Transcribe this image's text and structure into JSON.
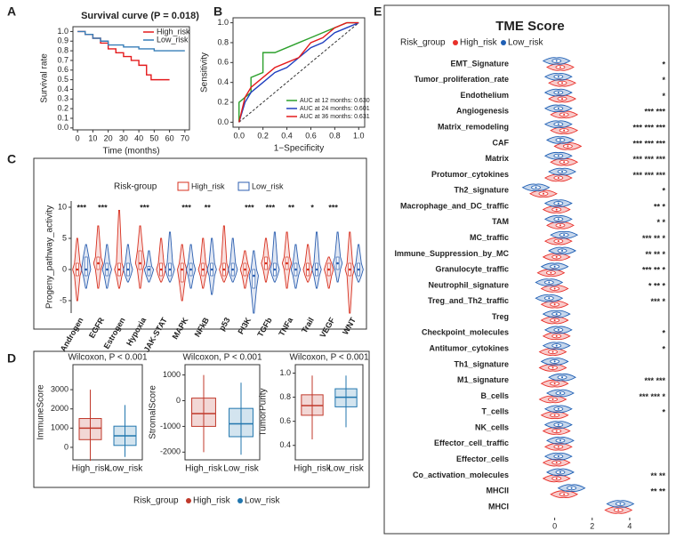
{
  "chart_data": [
    {
      "panel": "A",
      "type": "line",
      "step": true,
      "title": "Survival curve (P = 0.018)",
      "xlabel": "Time (months)",
      "ylabel": "Survival rate",
      "xlim": [
        -3,
        73
      ],
      "xticks": [
        0,
        10,
        20,
        30,
        40,
        50,
        60,
        70
      ],
      "ylim": [
        -0.02,
        1.05
      ],
      "yticks": [
        {
          "value": 0,
          "label": "0.0"
        },
        0.1,
        0.2,
        0.3,
        0.4,
        0.5,
        0.6,
        0.7,
        0.8,
        0.9,
        {
          "value": 1,
          "label": "1.0"
        }
      ],
      "legend": "topright",
      "series": [
        {
          "name": "High_risk",
          "color": "#e41a1c",
          "x": [
            0,
            5,
            10,
            15,
            20,
            25,
            30,
            35,
            40,
            45,
            48,
            50,
            60
          ],
          "values": [
            1,
            0.97,
            0.93,
            0.88,
            0.82,
            0.78,
            0.74,
            0.7,
            0.65,
            0.55,
            0.5,
            0.5,
            0.5
          ]
        },
        {
          "name": "Low_risk",
          "color": "#377eb8",
          "x": [
            0,
            5,
            10,
            15,
            20,
            30,
            40,
            50,
            60,
            70
          ],
          "values": [
            1,
            0.97,
            0.93,
            0.9,
            0.86,
            0.84,
            0.82,
            0.8,
            0.8,
            0.8
          ]
        }
      ]
    },
    {
      "panel": "B",
      "type": "line",
      "step": false,
      "diagonal": true,
      "xlabel": "1−Specificity",
      "ylabel": "Sensitivity",
      "xlim": [
        -0.05,
        1.05
      ],
      "xticks": [
        {
          "value": 0,
          "label": "0.0"
        },
        0.2,
        0.4,
        0.6,
        0.8,
        {
          "value": 1,
          "label": "1.0"
        }
      ],
      "ylim": [
        -0.05,
        1.05
      ],
      "yticks": [
        {
          "value": 0,
          "label": "0.0"
        },
        0.2,
        0.4,
        0.6,
        0.8,
        {
          "value": 1,
          "label": "1.0"
        }
      ],
      "legend": "bottomright",
      "series": [
        {
          "name": "AUC at 12 months: 0.630",
          "color": "#2ca02c",
          "x": [
            0,
            0,
            0.1,
            0.1,
            0.2,
            0.2,
            0.3,
            0.4,
            0.5,
            0.6,
            0.7,
            0.8,
            0.9,
            1
          ],
          "values": [
            0,
            0.2,
            0.3,
            0.45,
            0.5,
            0.7,
            0.7,
            0.75,
            0.8,
            0.85,
            0.9,
            0.95,
            1,
            1
          ]
        },
        {
          "name": "AUC at 24 months: 0.601",
          "color": "#1f3fbf",
          "x": [
            0,
            0.05,
            0.1,
            0.2,
            0.3,
            0.4,
            0.5,
            0.6,
            0.7,
            0.8,
            0.9,
            1
          ],
          "values": [
            0,
            0.2,
            0.3,
            0.4,
            0.5,
            0.55,
            0.65,
            0.75,
            0.8,
            0.9,
            0.95,
            1
          ]
        },
        {
          "name": "AUC at 36 months: 0.631",
          "color": "#e41a1c",
          "x": [
            0,
            0.05,
            0.1,
            0.2,
            0.3,
            0.4,
            0.5,
            0.6,
            0.7,
            0.8,
            0.9,
            1
          ],
          "values": [
            0,
            0.25,
            0.35,
            0.45,
            0.55,
            0.6,
            0.65,
            0.8,
            0.85,
            0.95,
            1,
            1
          ]
        }
      ]
    },
    {
      "panel": "C",
      "type": "violin",
      "orientation": "vertical",
      "legend_title": "Risk-group",
      "ylabel": "Progeny_pathway_activity",
      "ylim": [
        -7,
        11
      ],
      "yticks": [
        -5,
        0,
        5,
        10
      ],
      "categories": [
        "Androgen",
        "EGFR",
        "Estrogen",
        "Hypoxia",
        "JAK-STAT",
        "MAPK",
        "NFkB",
        "p53",
        "PI3K",
        "TGFb",
        "TNFa",
        "Trail",
        "VEGF",
        "WNT"
      ],
      "annotations": [
        "***",
        "***",
        null,
        "***",
        null,
        "***",
        "**",
        null,
        "***",
        "***",
        "**",
        "*",
        "***",
        null
      ],
      "series": [
        {
          "name": "High_risk",
          "color": "#d7301f",
          "values": [
            [
              -5,
              -1,
              0,
              1,
              5
            ],
            [
              -3,
              0,
              1,
              2,
              7
            ],
            [
              -3,
              -1,
              0,
              1,
              9.5
            ],
            [
              -3,
              0,
              1,
              3,
              7
            ],
            [
              -2,
              -1,
              0,
              1,
              5
            ],
            [
              -5,
              -2,
              0,
              1,
              4
            ],
            [
              -3,
              -1,
              0,
              1,
              5
            ],
            [
              -2,
              -1,
              0,
              1,
              7
            ],
            [
              -3,
              -1,
              0,
              1,
              3
            ],
            [
              -2,
              0,
              1,
              2,
              5
            ],
            [
              -3,
              0,
              1,
              2,
              6
            ],
            [
              -2,
              -1,
              0,
              1,
              4
            ],
            [
              -3,
              -1,
              0,
              1,
              2
            ],
            [
              -7,
              -1,
              0,
              1,
              6
            ]
          ]
        },
        {
          "name": "Low_risk",
          "color": "#2c5fb0",
          "values": [
            [
              -3,
              -1,
              0,
              2,
              4
            ],
            [
              -3,
              -1,
              0,
              1,
              4
            ],
            [
              -2,
              -1,
              0,
              1,
              4
            ],
            [
              -2,
              -1,
              0,
              0.5,
              3
            ],
            [
              -2,
              -1,
              0,
              1,
              6
            ],
            [
              -3,
              -1,
              0,
              1,
              4
            ],
            [
              -4,
              -1,
              0,
              1,
              5
            ],
            [
              -2,
              -1,
              0,
              1,
              5
            ],
            [
              -7,
              -3,
              -1,
              0,
              3
            ],
            [
              -2,
              -1,
              0,
              1,
              6
            ],
            [
              -3,
              -1,
              0,
              1,
              4
            ],
            [
              -3,
              -1,
              0,
              1,
              6
            ],
            [
              -2,
              0,
              1,
              2,
              6
            ],
            [
              -2,
              -1,
              0,
              1,
              4
            ]
          ]
        }
      ]
    },
    {
      "panel": "D",
      "type": "box",
      "legend_title": "Risk_group",
      "groups": [
        {
          "name": "High_risk",
          "color": "#c0392b"
        },
        {
          "name": "Low_risk",
          "color": "#2176ae"
        }
      ],
      "subplots": [
        {
          "title": "Wilcoxon, P < 0.001",
          "ylabel": "ImmuneScore",
          "categories": [
            "High_risk",
            "Low_risk"
          ],
          "ylim": [
            -650,
            4300
          ],
          "yticks": [
            0,
            1000,
            2000,
            3000
          ],
          "values": [
            [
              -700,
              400,
              1000,
              1500,
              3000
            ],
            [
              -500,
              100,
              600,
              1100,
              2200
            ]
          ]
        },
        {
          "title": "Wilcoxon, P < 0.001",
          "ylabel": "StromalScore",
          "categories": [
            "High_risk",
            "Low_risk"
          ],
          "ylim": [
            -2300,
            1400
          ],
          "yticks": [
            -2000,
            -1000,
            0,
            1000
          ],
          "values": [
            [
              -2000,
              -1000,
              -500,
              100,
              1000
            ],
            [
              -2100,
              -1400,
              -900,
              -300,
              700
            ]
          ]
        },
        {
          "title": "Wilcoxon, P < 0.001",
          "ylabel": "TumorPurity",
          "categories": [
            "High_risk",
            "Low_risk"
          ],
          "ylim": [
            0.28,
            1.07
          ],
          "yticks": [
            0.4,
            0.6,
            0.8,
            {
              "value": 1,
              "label": "1.0"
            }
          ],
          "values": [
            [
              0.45,
              0.65,
              0.73,
              0.82,
              0.98
            ],
            [
              0.55,
              0.72,
              0.8,
              0.87,
              0.98
            ]
          ]
        }
      ]
    },
    {
      "panel": "E",
      "type": "violin",
      "orientation": "horizontal",
      "title": "TME Score",
      "legend_title": "Risk_group",
      "xlim": [
        -1.5,
        5
      ],
      "xticks": [
        0,
        2,
        4
      ],
      "categories": [
        "EMT_Signature",
        "Tumor_proliferation_rate",
        "Endothelium",
        "Angiogenesis",
        "Matrix_remodeling",
        "CAF",
        "Matrix",
        "Protumor_cytokines",
        "Th2_signature",
        "Macrophage_and_DC_traffic",
        "TAM",
        "MC_traffic",
        "Immune_Suppression_by_MC",
        "Granulocyte_traffic",
        "Neutrophil_signature",
        "Treg_and_Th2_traffic",
        "Treg",
        "Checkpoint_molecules",
        "Antitumor_cytokines",
        "Th1_signature",
        "M1_signature",
        "B_cells",
        "T_cells",
        "NK_cells",
        "Effector_cell_traffic",
        "Effector_cells",
        "Co_activation_molecules",
        "MHCII",
        "MHCI"
      ],
      "annotations": [
        "*",
        "*",
        "*",
        "*** ***",
        "*** *** ***",
        "*** *** ***",
        "*** *** ***",
        "*** *** ***",
        "*",
        "** *",
        "* *",
        "*** ** *",
        "** ** *",
        "*** ** *",
        "* ** *",
        "*** *",
        null,
        "*",
        "*",
        null,
        "*** ***",
        "*** *** *",
        "*",
        null,
        null,
        null,
        "** **",
        "** **",
        null
      ],
      "series": [
        {
          "name": "High_risk",
          "color": "#e8302a",
          "values": [
            0.3,
            0.4,
            0.4,
            0.5,
            0.5,
            0.7,
            0.5,
            0.2,
            -0.6,
            0.1,
            0.3,
            0.2,
            0.1,
            -0.2,
            0.0,
            0.0,
            0.0,
            0.1,
            -0.1,
            -0.1,
            0.0,
            -0.1,
            0.0,
            0.1,
            0.2,
            0.1,
            0.1,
            0.5,
            3.4
          ]
        },
        {
          "name": "Low_risk",
          "color": "#1f5fb4",
          "values": [
            0.1,
            0.2,
            0.2,
            0.2,
            0.2,
            0.3,
            0.2,
            0.4,
            -1.0,
            0.2,
            0.2,
            0.5,
            0.4,
            0.0,
            -0.3,
            -0.3,
            0.1,
            0.2,
            0.1,
            0.0,
            0.4,
            0.3,
            0.2,
            0.2,
            0.3,
            0.2,
            0.3,
            0.9,
            3.5
          ]
        }
      ]
    }
  ]
}
